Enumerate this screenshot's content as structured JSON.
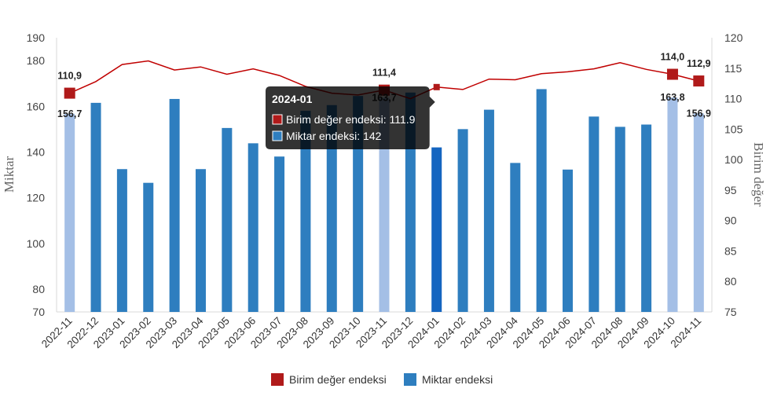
{
  "chart_data": {
    "type": "bar",
    "categories": [
      "2022-11",
      "2022-12",
      "2023-01",
      "2023-02",
      "2023-03",
      "2023-04",
      "2023-05",
      "2023-06",
      "2023-07",
      "2023-08",
      "2023-09",
      "2023-10",
      "2023-11",
      "2023-12",
      "2024-01",
      "2024-02",
      "2024-03",
      "2024-04",
      "2024-05",
      "2024-06",
      "2024-07",
      "2024-08",
      "2024-09",
      "2024-10",
      "2024-11"
    ],
    "series": [
      {
        "name": "Miktar endeksi",
        "type": "bar",
        "axis": "left",
        "color": "#2e7ebf",
        "highlight_color": "#a4bfe6",
        "active_color": "#1565c0",
        "values": [
          156.7,
          161.5,
          132.5,
          126.5,
          163.2,
          132.5,
          150.5,
          143.8,
          138.0,
          158.0,
          160.5,
          164.5,
          163.7,
          166.0,
          142.0,
          150.0,
          158.5,
          135.2,
          167.5,
          132.3,
          155.5,
          151.0,
          152.0,
          163.8,
          156.9
        ]
      },
      {
        "name": "Birim değer endeksi",
        "type": "line",
        "axis": "right",
        "color": "#c00000",
        "marker_color": "#b01a1a",
        "values": [
          110.9,
          112.8,
          115.6,
          116.2,
          114.7,
          115.2,
          114.0,
          114.9,
          113.8,
          112.0,
          110.9,
          110.6,
          111.4,
          110.0,
          111.9,
          111.5,
          113.2,
          113.1,
          114.1,
          114.4,
          114.9,
          115.9,
          114.8,
          114.0,
          112.9
        ]
      }
    ],
    "highlighted_indices": [
      0,
      12,
      23,
      24
    ],
    "active_index": 14,
    "data_labels": [
      {
        "index": 0,
        "line": "110,9",
        "bar": "156,7"
      },
      {
        "index": 12,
        "line": "111,4",
        "bar": "163,7"
      },
      {
        "index": 23,
        "line": "114,0",
        "bar": "163,8"
      },
      {
        "index": 24,
        "line": "112,9",
        "bar": "156,9"
      }
    ],
    "y_left": {
      "label": "Miktar",
      "range": [
        70,
        190
      ],
      "ticks": [
        70,
        80,
        100,
        120,
        140,
        160,
        180,
        190
      ]
    },
    "y_right": {
      "label": "Birim değer",
      "range": [
        75,
        120
      ],
      "ticks": [
        75,
        80,
        85,
        90,
        95,
        100,
        105,
        110,
        115,
        120
      ]
    },
    "grid": false,
    "legend_position": "bottom-center"
  },
  "legend": [
    {
      "label": "Birim değer endeksi",
      "color": "#b01a1a"
    },
    {
      "label": "Miktar endeksi",
      "color": "#2e7ebf"
    }
  ],
  "tooltip": {
    "title": "2024-01",
    "rows": [
      {
        "label": "Birim değer endeksi: 111.9",
        "color": "#b01a1a"
      },
      {
        "label": "Miktar endeksi: 142",
        "color": "#2e7ebf"
      }
    ]
  }
}
